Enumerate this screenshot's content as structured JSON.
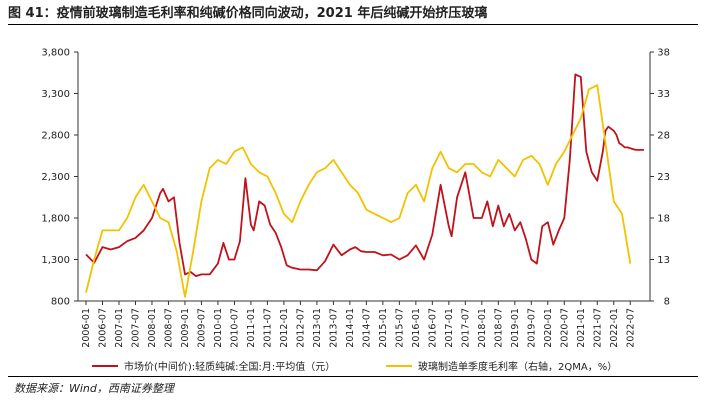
{
  "header": {
    "title": "图 41：疫情前玻璃制造毛利率和纯碱价格同向波动，2021 年后纯碱开始挤压玻璃",
    "source": "数据来源：Wind，西南证券整理"
  },
  "chart_data": {
    "type": "line",
    "title": "图 41：疫情前玻璃制造毛利率和纯碱价格同向波动，2021 年后纯碱开始挤压玻璃",
    "xlabel": "",
    "ylabel": "",
    "x_ticks": [
      "2006-01",
      "2006-07",
      "2007-01",
      "2007-07",
      "2008-01",
      "2008-07",
      "2009-01",
      "2009-07",
      "2010-01",
      "2010-07",
      "2011-01",
      "2011-07",
      "2012-01",
      "2012-07",
      "2013-01",
      "2013-07",
      "2014-01",
      "2014-07",
      "2015-01",
      "2015-07",
      "2016-01",
      "2016-07",
      "2017-01",
      "2017-07",
      "2018-01",
      "2018-07",
      "2019-01",
      "2019-07",
      "2020-01",
      "2020-07",
      "2021-01",
      "2021-07",
      "2022-01",
      "2022-07"
    ],
    "y_left": {
      "range": [
        800,
        3800
      ],
      "ticks": [
        "800",
        "1,300",
        "1,800",
        "2,300",
        "2,800",
        "3,300",
        "3,800"
      ]
    },
    "y_right": {
      "range": [
        8,
        38
      ],
      "ticks": [
        "8",
        "13",
        "18",
        "23",
        "28",
        "33",
        "38"
      ]
    },
    "grid": false,
    "legend_position": "bottom",
    "colors": {
      "soda_ash": "#c0121c",
      "glass_margin": "#f2c200"
    },
    "series": [
      {
        "name": "市场价(中间价):轻质纯碱:全国:月:平均值（元）",
        "axis": "left",
        "color": "#c0121c",
        "x": [
          "2006-01",
          "2006-04",
          "2006-07",
          "2006-10",
          "2007-01",
          "2007-04",
          "2007-07",
          "2007-10",
          "2008-01",
          "2008-04",
          "2008-05",
          "2008-07",
          "2008-09",
          "2008-11",
          "2009-01",
          "2009-03",
          "2009-05",
          "2009-07",
          "2009-10",
          "2010-01",
          "2010-03",
          "2010-05",
          "2010-07",
          "2010-09",
          "2010-11",
          "2011-01",
          "2011-02",
          "2011-04",
          "2011-06",
          "2011-08",
          "2011-10",
          "2011-12",
          "2012-02",
          "2012-04",
          "2012-07",
          "2012-10",
          "2013-01",
          "2013-04",
          "2013-07",
          "2013-10",
          "2014-01",
          "2014-03",
          "2014-05",
          "2014-07",
          "2014-10",
          "2015-01",
          "2015-04",
          "2015-07",
          "2015-10",
          "2016-01",
          "2016-04",
          "2016-07",
          "2016-10",
          "2017-01",
          "2017-02",
          "2017-04",
          "2017-07",
          "2017-10",
          "2018-01",
          "2018-03",
          "2018-05",
          "2018-07",
          "2018-09",
          "2018-11",
          "2019-01",
          "2019-03",
          "2019-05",
          "2019-07",
          "2019-09",
          "2019-11",
          "2020-01",
          "2020-03",
          "2020-05",
          "2020-07",
          "2020-09",
          "2020-11",
          "2021-01",
          "2021-03",
          "2021-05",
          "2021-07",
          "2021-09",
          "2021-10",
          "2021-11",
          "2022-01",
          "2022-02",
          "2022-03",
          "2022-04",
          "2022-05",
          "2022-06",
          "2022-07",
          "2022-08",
          "2022-09",
          "2022-10",
          "2022-11",
          "2022-12"
        ],
        "values": [
          1360,
          1260,
          1450,
          1420,
          1450,
          1520,
          1560,
          1650,
          1800,
          2100,
          2150,
          2000,
          2050,
          1500,
          1120,
          1150,
          1100,
          1120,
          1120,
          1250,
          1500,
          1300,
          1300,
          1520,
          2280,
          1720,
          1650,
          2000,
          1950,
          1720,
          1620,
          1450,
          1230,
          1200,
          1180,
          1180,
          1170,
          1280,
          1480,
          1350,
          1420,
          1450,
          1400,
          1390,
          1390,
          1350,
          1360,
          1300,
          1350,
          1470,
          1300,
          1600,
          2200,
          1700,
          1580,
          2050,
          2350,
          1800,
          1800,
          2000,
          1700,
          1950,
          1700,
          1850,
          1650,
          1750,
          1550,
          1300,
          1250,
          1700,
          1750,
          1480,
          1650,
          1800,
          2500,
          3530,
          3500,
          2600,
          2350,
          2250,
          2600,
          2850,
          2900,
          2850,
          2800,
          2700,
          2680,
          2650,
          2650,
          2640,
          2630,
          2620,
          2620,
          2620,
          2620
        ]
      },
      {
        "name": "玻璃制造单季度毛利率（右轴，2QMA，%）",
        "axis": "right",
        "color": "#f2c200",
        "x": [
          "2006-01",
          "2006-04",
          "2006-07",
          "2006-10",
          "2007-01",
          "2007-04",
          "2007-07",
          "2007-10",
          "2008-01",
          "2008-04",
          "2008-07",
          "2008-10",
          "2009-01",
          "2009-04",
          "2009-07",
          "2009-10",
          "2010-01",
          "2010-04",
          "2010-07",
          "2010-10",
          "2011-01",
          "2011-04",
          "2011-07",
          "2011-10",
          "2012-01",
          "2012-04",
          "2012-07",
          "2012-10",
          "2013-01",
          "2013-04",
          "2013-07",
          "2013-10",
          "2014-01",
          "2014-04",
          "2014-07",
          "2014-10",
          "2015-01",
          "2015-04",
          "2015-07",
          "2015-10",
          "2016-01",
          "2016-04",
          "2016-07",
          "2016-10",
          "2017-01",
          "2017-04",
          "2017-07",
          "2017-10",
          "2018-01",
          "2018-04",
          "2018-07",
          "2018-10",
          "2019-01",
          "2019-04",
          "2019-07",
          "2019-10",
          "2020-01",
          "2020-04",
          "2020-07",
          "2020-10",
          "2021-01",
          "2021-04",
          "2021-07",
          "2021-10",
          "2022-01",
          "2022-04",
          "2022-07"
        ],
        "values": [
          9.0,
          13.0,
          16.5,
          16.5,
          16.5,
          18.0,
          20.5,
          22.0,
          20.0,
          18.0,
          17.5,
          14.0,
          8.5,
          14.0,
          20.0,
          24.0,
          25.0,
          24.5,
          26.0,
          26.5,
          24.5,
          23.5,
          23.0,
          21.0,
          18.5,
          17.5,
          20.0,
          22.0,
          23.5,
          24.0,
          25.0,
          23.5,
          22.0,
          21.0,
          19.0,
          18.5,
          18.0,
          17.5,
          18.0,
          21.0,
          22.0,
          20.0,
          24.0,
          26.0,
          24.0,
          23.5,
          24.5,
          24.5,
          23.5,
          23.0,
          25.0,
          24.0,
          23.0,
          25.0,
          25.5,
          24.5,
          22.0,
          24.5,
          26.0,
          28.0,
          30.0,
          33.5,
          34.0,
          27.0,
          20.0,
          18.5,
          12.5
        ]
      }
    ]
  }
}
